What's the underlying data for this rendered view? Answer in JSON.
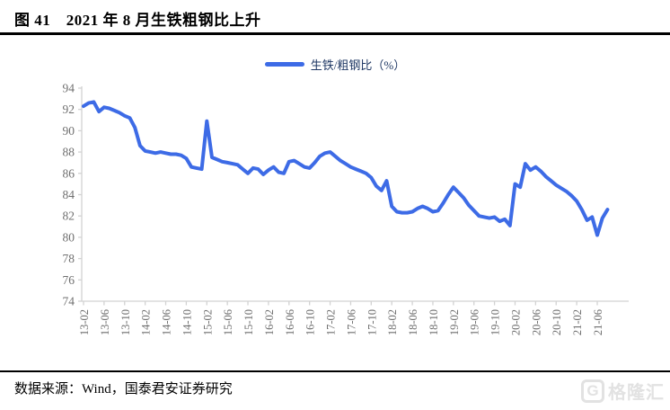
{
  "title": "图 41　2021 年 8 月生铁粗钢比上升",
  "legend": {
    "label": "生铁/粗钢比（%）"
  },
  "source": {
    "text": "数据来源：Wind，国泰君安证券研究"
  },
  "watermark": {
    "logo_letter": "G",
    "text": "格隆汇"
  },
  "colors": {
    "line": "#3D6BE6",
    "legend_text": "#1F3864",
    "axis": "#D2D2D2",
    "tick_label": "#6F6F6F",
    "rule": "#000000"
  },
  "chart_data": {
    "type": "line",
    "title": "生铁/粗钢比（%）",
    "grid": false,
    "legend_position": "top-center",
    "ylim": [
      74,
      94
    ],
    "y_ticks": [
      74,
      76,
      78,
      80,
      82,
      84,
      86,
      88,
      90,
      92,
      94
    ],
    "x_tick_labels": [
      "13-02",
      "13-06",
      "13-10",
      "14-02",
      "14-06",
      "14-10",
      "15-02",
      "15-06",
      "15-10",
      "16-02",
      "16-06",
      "16-10",
      "17-02",
      "17-06",
      "17-10",
      "18-02",
      "18-06",
      "18-10",
      "19-02",
      "19-06",
      "19-10",
      "20-02",
      "20-06",
      "20-10",
      "21-02",
      "21-06"
    ],
    "x": [
      "13-02",
      "13-03",
      "13-04",
      "13-05",
      "13-06",
      "13-07",
      "13-08",
      "13-09",
      "13-10",
      "13-11",
      "13-12",
      "14-01",
      "14-02",
      "14-03",
      "14-04",
      "14-05",
      "14-06",
      "14-07",
      "14-08",
      "14-09",
      "14-10",
      "14-11",
      "14-12",
      "15-01",
      "15-02",
      "15-03",
      "15-04",
      "15-05",
      "15-06",
      "15-07",
      "15-08",
      "15-09",
      "15-10",
      "15-11",
      "15-12",
      "16-01",
      "16-02",
      "16-03",
      "16-04",
      "16-05",
      "16-06",
      "16-07",
      "16-08",
      "16-09",
      "16-10",
      "16-11",
      "16-12",
      "17-01",
      "17-02",
      "17-03",
      "17-04",
      "17-05",
      "17-06",
      "17-07",
      "17-08",
      "17-09",
      "17-10",
      "17-11",
      "17-12",
      "18-01",
      "18-02",
      "18-03",
      "18-04",
      "18-05",
      "18-06",
      "18-07",
      "18-08",
      "18-09",
      "18-10",
      "18-11",
      "18-12",
      "19-01",
      "19-02",
      "19-03",
      "19-04",
      "19-05",
      "19-06",
      "19-07",
      "19-08",
      "19-09",
      "19-10",
      "19-11",
      "19-12",
      "20-01",
      "20-02",
      "20-03",
      "20-04",
      "20-05",
      "20-06",
      "20-07",
      "20-08",
      "20-09",
      "20-10",
      "20-11",
      "20-12",
      "21-01",
      "21-02",
      "21-03",
      "21-04",
      "21-05",
      "21-06",
      "21-07",
      "21-08"
    ],
    "series": [
      {
        "name": "生铁/粗钢比（%）",
        "values": [
          92.3,
          92.6,
          92.7,
          91.8,
          92.2,
          92.1,
          91.9,
          91.7,
          91.4,
          91.2,
          90.3,
          88.6,
          88.1,
          88.0,
          87.9,
          88.0,
          87.9,
          87.8,
          87.8,
          87.7,
          87.4,
          86.6,
          86.5,
          86.4,
          90.9,
          87.5,
          87.3,
          87.1,
          87.0,
          86.9,
          86.8,
          86.4,
          86.0,
          86.5,
          86.4,
          85.9,
          86.3,
          86.6,
          86.1,
          86.0,
          87.1,
          87.2,
          86.9,
          86.6,
          86.5,
          87.0,
          87.6,
          87.9,
          88.0,
          87.6,
          87.2,
          86.9,
          86.6,
          86.4,
          86.2,
          86.0,
          85.6,
          84.8,
          84.4,
          85.3,
          82.9,
          82.4,
          82.3,
          82.3,
          82.4,
          82.7,
          82.9,
          82.7,
          82.4,
          82.5,
          83.2,
          84.0,
          84.7,
          84.2,
          83.7,
          83.0,
          82.5,
          82.0,
          81.9,
          81.8,
          81.9,
          81.5,
          81.7,
          81.1,
          85.0,
          84.7,
          86.9,
          86.3,
          86.6,
          86.2,
          85.7,
          85.3,
          84.9,
          84.6,
          84.3,
          83.9,
          83.4,
          82.6,
          81.6,
          81.9,
          80.2,
          81.8,
          82.6
        ]
      }
    ]
  }
}
